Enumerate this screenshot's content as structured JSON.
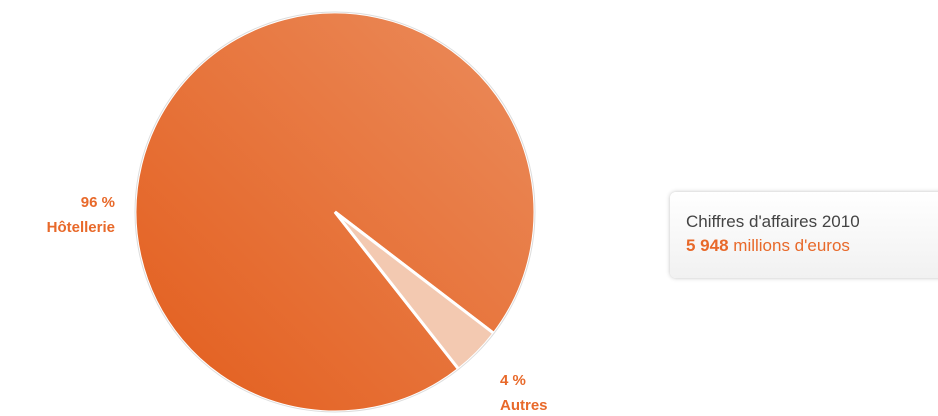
{
  "chart_data": {
    "type": "pie",
    "categories": [
      "Hôtellerie",
      "Autres"
    ],
    "values": [
      96,
      4
    ],
    "value_labels": [
      "96 %",
      "4 %"
    ],
    "colors": [
      "#e86a2c",
      "#f3c9b1"
    ]
  },
  "info_box": {
    "title": "Chiffres d'affaires 2010",
    "amount": "5 948",
    "unit": "millions d'euros"
  }
}
